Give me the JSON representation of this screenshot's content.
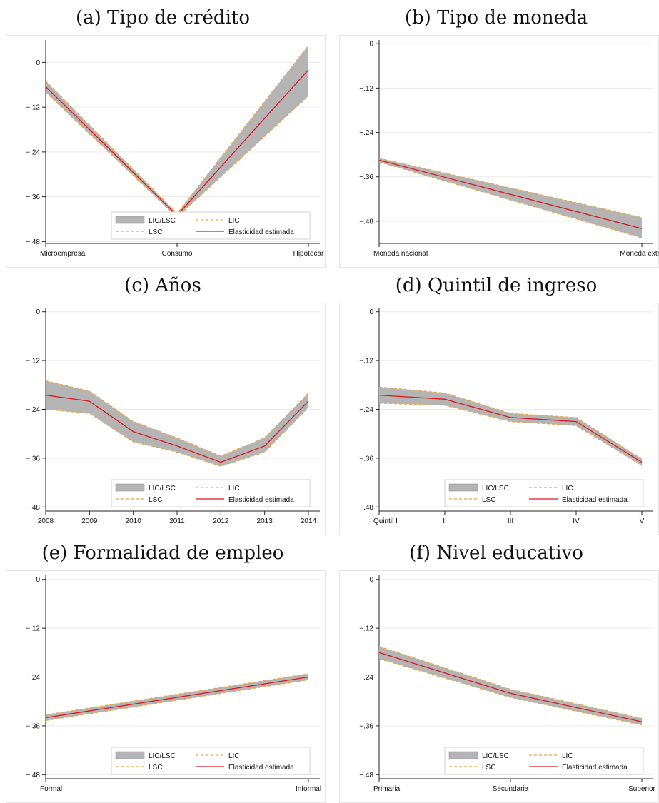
{
  "chart_data": [
    {
      "type": "line",
      "title": "(a) Tipo de crédito",
      "categories": [
        "Microempresa",
        "Consumo",
        "Hipotecar"
      ],
      "yticks": [
        "0",
        "-.12",
        "-.24",
        "-.36",
        "-.48"
      ],
      "ylim": [
        -0.485,
        0.06
      ],
      "grid": true,
      "legend": [
        "LIC/LSC",
        "LIC",
        "LSC",
        "Elasticidad estimada"
      ],
      "legend_position": "bottom-right",
      "series": [
        {
          "name": "Elasticidad estimada",
          "values": [
            -0.065,
            -0.41,
            -0.02
          ]
        },
        {
          "name": "LIC",
          "values": [
            -0.08,
            -0.415,
            -0.09
          ]
        },
        {
          "name": "LSC",
          "values": [
            -0.05,
            -0.405,
            0.045
          ]
        }
      ]
    },
    {
      "type": "line",
      "title": "(b) Tipo de moneda",
      "categories": [
        "Moneda nacional",
        "Moneda extra"
      ],
      "yticks": [
        "0",
        "-.12",
        "-.24",
        "-.36",
        "-.48"
      ],
      "ylim": [
        -0.54,
        0.01
      ],
      "grid": true,
      "legend": [],
      "legend_position": "",
      "series": [
        {
          "name": "Elasticidad estimada",
          "values": [
            -0.315,
            -0.5
          ]
        },
        {
          "name": "LIC",
          "values": [
            -0.32,
            -0.525
          ]
        },
        {
          "name": "LSC",
          "values": [
            -0.31,
            -0.47
          ]
        }
      ]
    },
    {
      "type": "line",
      "title": "(c) Años",
      "categories": [
        "2008",
        "2009",
        "2010",
        "2011",
        "2012",
        "2013",
        "2014"
      ],
      "yticks": [
        "0",
        "-.12",
        "-.24",
        "-.36",
        "-.48"
      ],
      "ylim": [
        -0.49,
        0.01
      ],
      "grid": true,
      "legend": [
        "LIC/LSC",
        "LIC",
        "LSC",
        "Elasticidad estimada"
      ],
      "legend_position": "bottom-right",
      "series": [
        {
          "name": "Elasticidad estimada",
          "values": [
            -0.205,
            -0.22,
            -0.295,
            -0.33,
            -0.37,
            -0.33,
            -0.22
          ]
        },
        {
          "name": "LIC",
          "values": [
            -0.24,
            -0.25,
            -0.32,
            -0.345,
            -0.38,
            -0.345,
            -0.235
          ]
        },
        {
          "name": "LSC",
          "values": [
            -0.17,
            -0.195,
            -0.27,
            -0.31,
            -0.355,
            -0.31,
            -0.2
          ]
        }
      ]
    },
    {
      "type": "line",
      "title": "(d) Quintil de ingreso",
      "categories": [
        "Quintil I",
        "II",
        "III",
        "IV",
        "V"
      ],
      "yticks": [
        "0",
        "-.12",
        "-.24",
        "-.36",
        "-.48"
      ],
      "ylim": [
        -0.49,
        0.01
      ],
      "grid": true,
      "legend": [
        "LIC/LSC",
        "LIC",
        "LSC",
        "Elasticidad estimada"
      ],
      "legend_position": "bottom-right",
      "series": [
        {
          "name": "Elasticidad estimada",
          "values": [
            -0.205,
            -0.215,
            -0.26,
            -0.27,
            -0.37
          ]
        },
        {
          "name": "LIC",
          "values": [
            -0.225,
            -0.23,
            -0.27,
            -0.28,
            -0.378
          ]
        },
        {
          "name": "LSC",
          "values": [
            -0.185,
            -0.2,
            -0.25,
            -0.26,
            -0.362
          ]
        }
      ]
    },
    {
      "type": "line",
      "title": "(e) Formalidad de empleo",
      "categories": [
        "Formal",
        "Informal"
      ],
      "yticks": [
        "0",
        "-.12",
        "-.24",
        "-.36",
        "-.48"
      ],
      "ylim": [
        -0.49,
        0.01
      ],
      "grid": true,
      "legend": [
        "LIC/LSC",
        "LIC",
        "LSC",
        "Elasticidad estimada"
      ],
      "legend_position": "bottom-right",
      "series": [
        {
          "name": "Elasticidad estimada",
          "values": [
            -0.34,
            -0.24
          ]
        },
        {
          "name": "LIC",
          "values": [
            -0.347,
            -0.247
          ]
        },
        {
          "name": "LSC",
          "values": [
            -0.333,
            -0.232
          ]
        }
      ]
    },
    {
      "type": "line",
      "title": "(f) Nivel educativo",
      "categories": [
        "Primaria",
        "Secundaria",
        "Superior"
      ],
      "yticks": [
        "0",
        "-.12",
        "-.24",
        "-.36",
        "-.48"
      ],
      "ylim": [
        -0.49,
        0.01
      ],
      "grid": true,
      "legend": [
        "LIC/LSC",
        "LIC",
        "LSC",
        "Elasticidad estimada"
      ],
      "legend_position": "bottom-right",
      "series": [
        {
          "name": "Elasticidad estimada",
          "values": [
            -0.18,
            -0.28,
            -0.35
          ]
        },
        {
          "name": "LIC",
          "values": [
            -0.195,
            -0.29,
            -0.358
          ]
        },
        {
          "name": "LSC",
          "values": [
            -0.165,
            -0.27,
            -0.342
          ]
        }
      ]
    }
  ]
}
